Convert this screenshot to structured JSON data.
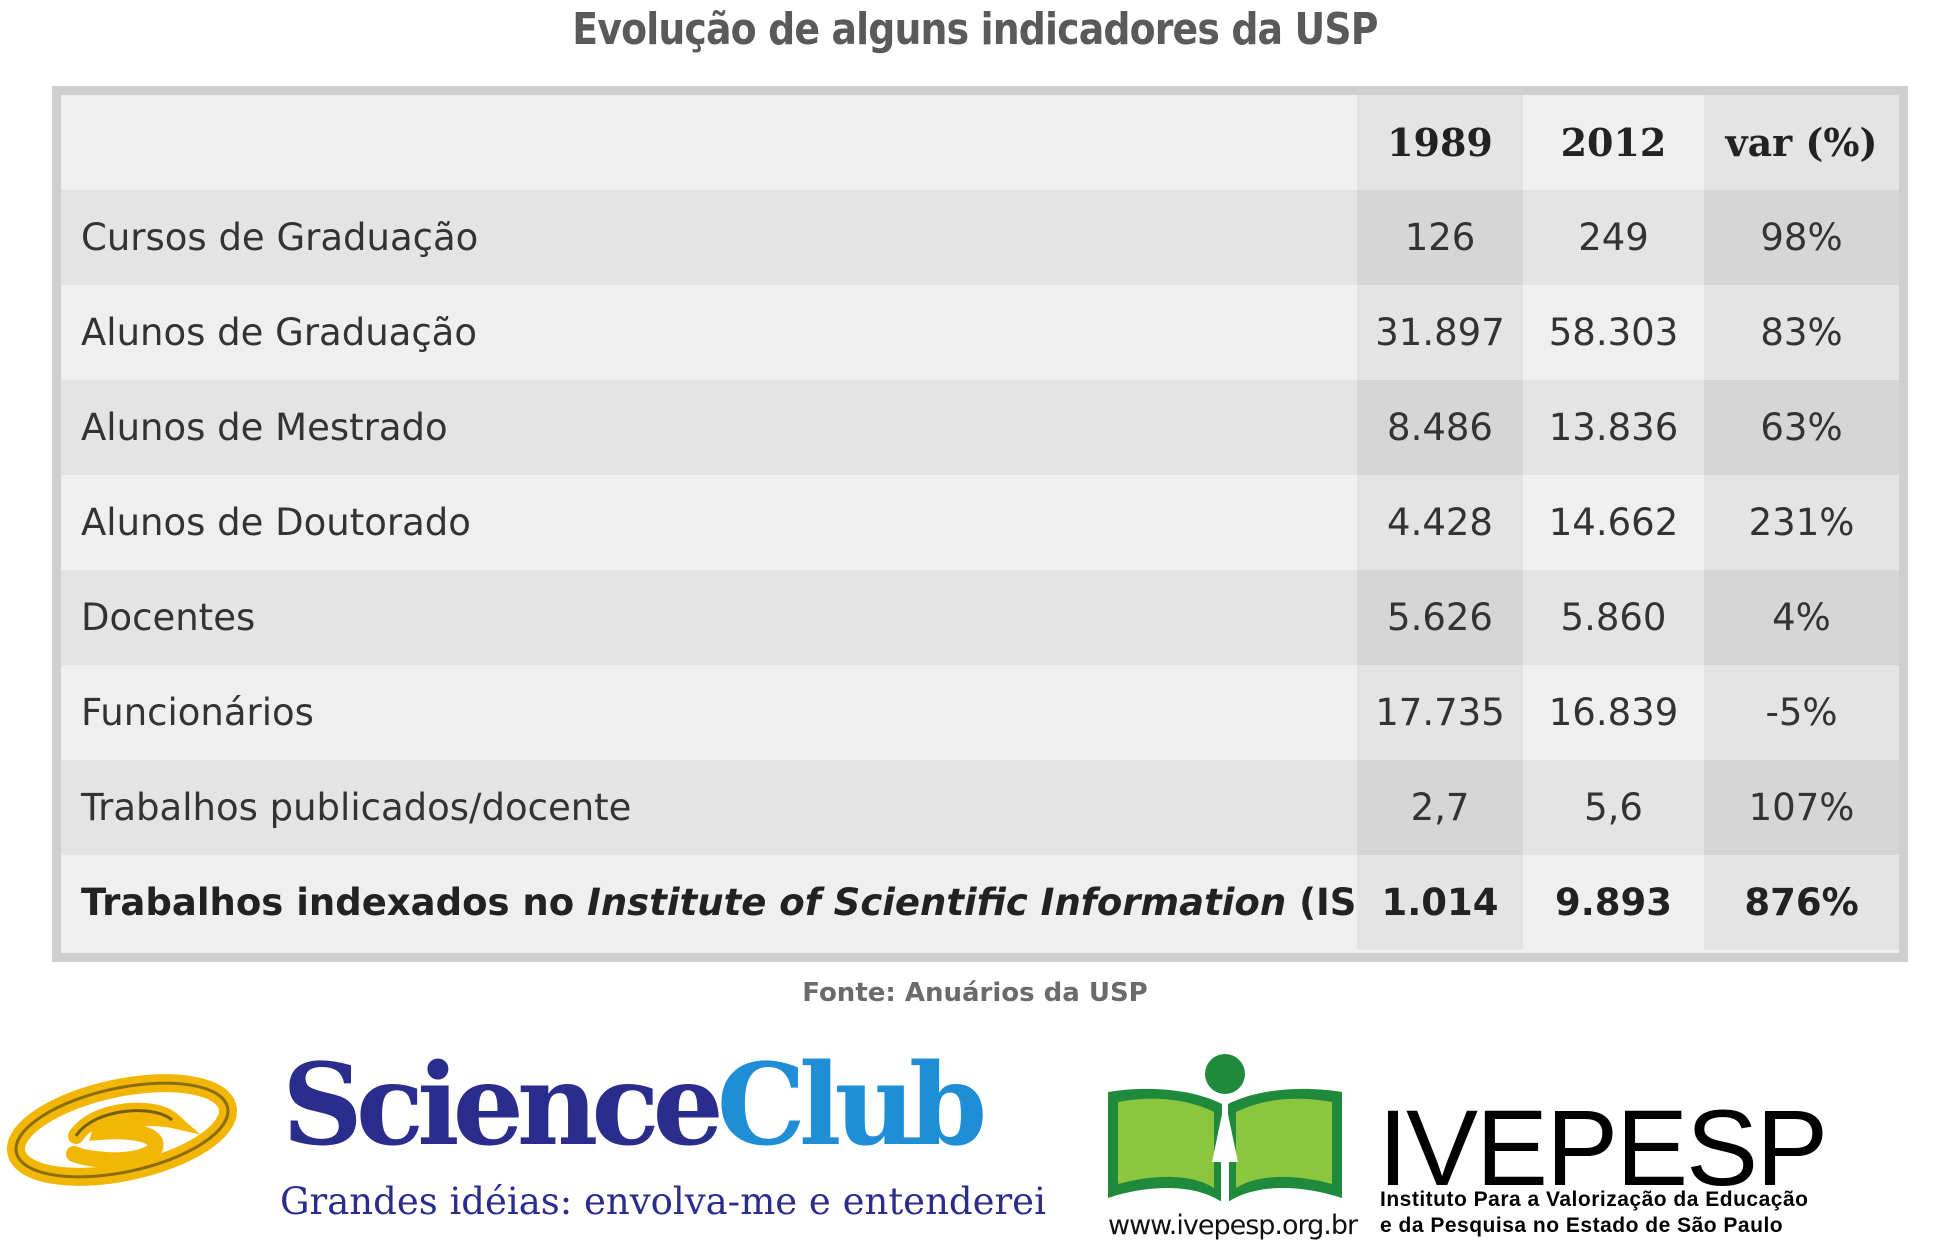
{
  "title": "Evolução de alguns indicadores da USP",
  "table": {
    "headers": {
      "label": "",
      "y1989": "1989",
      "y2012": "2012",
      "var": "var  (%)"
    },
    "rows": [
      {
        "label": "Cursos de Graduação",
        "y1989": "126",
        "y2012": "249",
        "var": "98%"
      },
      {
        "label": "Alunos de Graduação",
        "y1989": "31.897",
        "y2012": "58.303",
        "var": "83%"
      },
      {
        "label": "Alunos de Mestrado",
        "y1989": "8.486",
        "y2012": "13.836",
        "var": "63%"
      },
      {
        "label": "Alunos de Doutorado",
        "y1989": "4.428",
        "y2012": "14.662",
        "var": "231%"
      },
      {
        "label": "Docentes",
        "y1989": "5.626",
        "y2012": "5.860",
        "var": "4%"
      },
      {
        "label": "Funcionários",
        "y1989": "17.735",
        "y2012": "16.839",
        "var": "-5%"
      },
      {
        "label": "Trabalhos publicados/docente",
        "y1989": "2,7",
        "y2012": "5,6",
        "var": "107%"
      }
    ],
    "last_row": {
      "label_prefix": "Trabalhos indexados no ",
      "label_italic": "Institute of Scientific Information",
      "label_suffix": " (ISI)",
      "y1989": "1.014",
      "y2012": "9.893",
      "var": "876%"
    }
  },
  "source": "Fonte: Anuários da USP",
  "logos": {
    "scienceclub": {
      "word_part1": "Science",
      "word_part2": "Club",
      "tagline": "Grandes idéias: envolva-me e entenderei",
      "color_primary": "#2b2d8c",
      "color_secondary": "#1f8ed6",
      "icon": "scienceclub-swoosh-icon"
    },
    "ivepesp": {
      "word": "IVEPESP",
      "subtitle_line1": "Instituto Para a Valorização da Educação",
      "subtitle_line2": "e da Pesquisa no Estado de São Paulo",
      "url": "www.ivepesp.org.br",
      "color_green": "#8cc63f",
      "color_dark_green": "#1f8a3c",
      "icon": "open-book-icon"
    }
  }
}
